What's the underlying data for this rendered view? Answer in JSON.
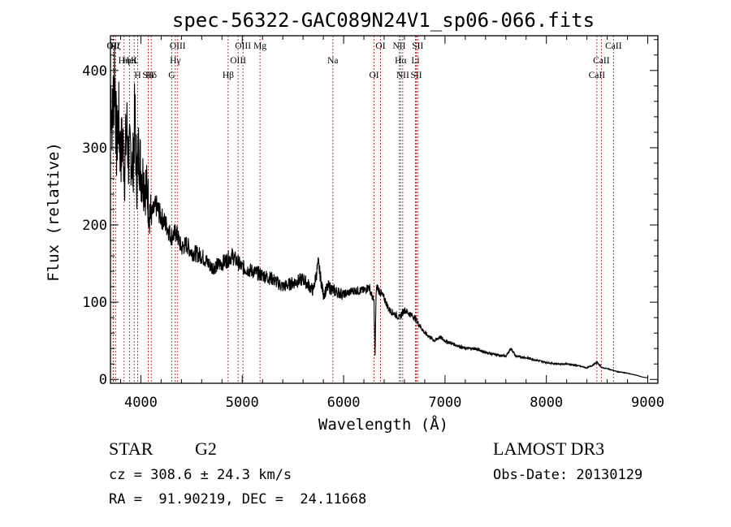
{
  "chart_data": {
    "type": "line",
    "title": "spec-56322-GAC089N24V1_sp06-066.fits",
    "xlabel": "Wavelength (Å)",
    "ylabel": "Flux (relative)",
    "xlim": [
      3700,
      9100
    ],
    "ylim": [
      -5,
      445
    ],
    "xticks": [
      4000,
      5000,
      6000,
      7000,
      8000,
      9000
    ],
    "yticks": [
      0,
      100,
      200,
      300,
      400
    ],
    "grid": false,
    "series": [
      {
        "name": "flux",
        "x": [
          3700,
          3720,
          3740,
          3760,
          3780,
          3800,
          3820,
          3840,
          3860,
          3880,
          3900,
          3920,
          3940,
          3960,
          3980,
          4000,
          4050,
          4100,
          4150,
          4200,
          4250,
          4300,
          4350,
          4400,
          4450,
          4500,
          4600,
          4700,
          4800,
          4900,
          5000,
          5100,
          5200,
          5300,
          5400,
          5500,
          5600,
          5700,
          5750,
          5800,
          5850,
          5900,
          6000,
          6100,
          6200,
          6250,
          6300,
          6310,
          6320,
          6330,
          6350,
          6400,
          6450,
          6500,
          6550,
          6600,
          6650,
          6700,
          6750,
          6800,
          6850,
          6900,
          6950,
          7000,
          7100,
          7200,
          7300,
          7400,
          7500,
          7600,
          7650,
          7700,
          7800,
          7900,
          8000,
          8100,
          8200,
          8300,
          8400,
          8450,
          8500,
          8550,
          8600,
          8650,
          8700,
          8800,
          8900,
          8950,
          9000
        ],
        "y": [
          380,
          330,
          410,
          300,
          340,
          290,
          310,
          270,
          330,
          280,
          300,
          270,
          340,
          260,
          300,
          270,
          250,
          210,
          225,
          210,
          200,
          185,
          190,
          170,
          175,
          165,
          160,
          145,
          150,
          160,
          145,
          140,
          135,
          130,
          120,
          125,
          130,
          115,
          150,
          110,
          120,
          115,
          110,
          115,
          115,
          120,
          100,
          30,
          110,
          120,
          115,
          105,
          90,
          85,
          80,
          90,
          85,
          80,
          70,
          60,
          55,
          50,
          55,
          50,
          45,
          40,
          40,
          35,
          32,
          30,
          40,
          30,
          28,
          25,
          22,
          20,
          20,
          18,
          15,
          18,
          22,
          15,
          14,
          12,
          10,
          8,
          5,
          3,
          2
        ]
      }
    ],
    "line_markers": [
      {
        "label": "Hζ",
        "wavelength": 3750
      },
      {
        "label": "K",
        "wavelength": 3934
      },
      {
        "label": "Hδ",
        "wavelength": 4102
      },
      {
        "label": "OII",
        "wavelength": 3727
      },
      {
        "label": "HeI",
        "wavelength": 3889
      },
      {
        "label": "SII",
        "wavelength": 4072
      },
      {
        "label": "OIII",
        "wavelength": 4363
      },
      {
        "label": "Hγ",
        "wavelength": 4340
      },
      {
        "label": "G",
        "wavelength": 4304
      },
      {
        "label": "OII",
        "wavelength": 3729
      },
      {
        "label": "Hη",
        "wavelength": 3835
      },
      {
        "label": "H",
        "wavelength": 3969
      },
      {
        "label": "OIII",
        "wavelength": 5007
      },
      {
        "label": "OIII",
        "wavelength": 4959
      },
      {
        "label": "Hβ",
        "wavelength": 4861
      },
      {
        "label": "Mg",
        "wavelength": 5175
      },
      {
        "label": "Na",
        "wavelength": 5894
      },
      {
        "label": "OI",
        "wavelength": 6300
      },
      {
        "label": "OI",
        "wavelength": 6364
      },
      {
        "label": "Hα",
        "wavelength": 6563
      },
      {
        "label": "SII",
        "wavelength": 6717
      },
      {
        "label": "NII",
        "wavelength": 6548
      },
      {
        "label": "Li",
        "wavelength": 6708
      },
      {
        "label": "NII",
        "wavelength": 6583
      },
      {
        "label": "SII",
        "wavelength": 6731
      },
      {
        "label": "CaII",
        "wavelength": 8542
      },
      {
        "label": "CaII",
        "wavelength": 8498
      },
      {
        "label": "CaII",
        "wavelength": 8662
      }
    ],
    "annotations": {
      "object_class": "STAR",
      "subclass": "G2",
      "survey": "LAMOST DR3",
      "redshift_line": "cz = 308.6 ± 24.3 km/s",
      "obs_date": "Obs-Date: 20130129",
      "coords": "RA =  91.90219, DEC =  24.11668"
    }
  }
}
